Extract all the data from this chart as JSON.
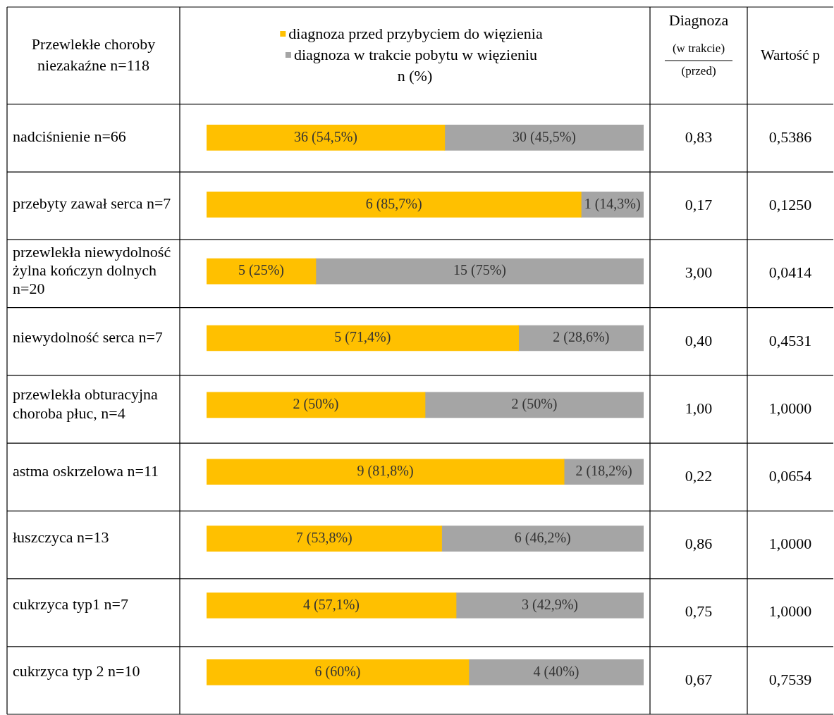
{
  "chart_data": {
    "type": "bar",
    "orientation": "horizontal",
    "stacked": true,
    "ylabel": "Przewlekłe choroby niezakaźne n=118",
    "xlabel": "n (%)",
    "legend": "top",
    "categories": [
      "nadciśnienie n=66",
      "przebyty zawał serca n=7",
      "przewlekła niewydolność żylna kończyn dolnych n=20",
      "niewydolność serca n=7",
      "przewlekła obturacyjna choroba płuc, n=4",
      "astma  oskrzelowa n=11",
      "łuszczyca n=13",
      "cukrzyca typ1 n=7",
      "cukrzyca typ 2 n=10"
    ],
    "xlim": [
      0,
      100
    ],
    "tick_labels": false,
    "series": [
      {
        "name": "diagnoza przed przybyciem do więzienia",
        "color": "#ffc000",
        "values": [
          54.5,
          85.7,
          25,
          71.4,
          50,
          81.8,
          53.8,
          57.1,
          60
        ],
        "value_labels": [
          "36 (54,5%)",
          "6 (85,7%)",
          "5 (25%)",
          "5 (71,4%)",
          "2 (50%)",
          "9 (81,8%)",
          "7 (53,8%)",
          "4 (57,1%)",
          "6 (60%)"
        ]
      },
      {
        "name": "diagnoza w trakcie pobytu w więzieniu",
        "color": "#a5a5a5",
        "values": [
          45.5,
          14.3,
          75,
          28.6,
          50,
          18.2,
          46.2,
          42.9,
          40
        ],
        "value_labels": [
          "30 (45,5%)",
          "1 (14,3%)",
          "15 (75%)",
          "2 (28,6%)",
          "2 (50%)",
          "2 (18,2%)",
          "6 (46,2%)",
          "3 (42,9%)",
          "4 (40%)"
        ]
      }
    ],
    "annotations": [
      "Diagnoza",
      "(w trakcie)",
      "(przed)",
      "Wartość p",
      "0,83",
      "0,5386",
      "0,17",
      "0,1250",
      "3,00",
      "0,0414",
      "0,40",
      "0,4531",
      "1,00",
      "1,0000",
      "0,22",
      "0,0654",
      "0,86",
      "1,0000",
      "0,75",
      "1,0000",
      "0,67",
      "0,7539"
    ]
  }
}
